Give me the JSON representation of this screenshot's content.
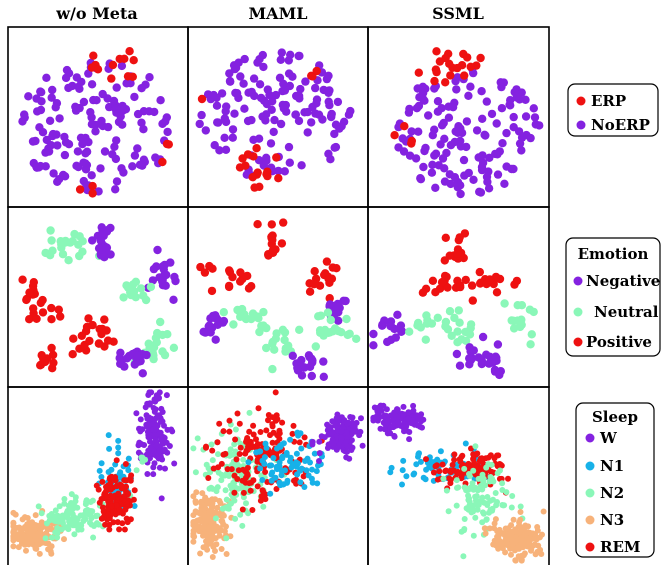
{
  "chart_data": {
    "type": "scatter",
    "title": "",
    "columns": [
      "w/o Meta",
      "MAML",
      "SSML"
    ],
    "colors": {
      "ERP": "#ee1111",
      "NoERP": "#8422e0",
      "Negative": "#8422e0",
      "Neutral": "#8af7b8",
      "Positive": "#ee1111",
      "W": "#8422e0",
      "N1": "#17b1e8",
      "N2": "#8af7b8",
      "N3": "#f7b27a",
      "REM": "#ee1111"
    },
    "rows": [
      {
        "task": "ERP",
        "legend_title": "",
        "legend_items": [
          "ERP",
          "NoERP"
        ],
        "grid": false,
        "panels": [
          {
            "column": "w/o Meta",
            "clusters": [
              {
                "label": "NoERP",
                "cx": 0.5,
                "cy": 0.55,
                "sx": 0.44,
                "sy": 0.38,
                "n": 150,
                "shape": "uniform"
              },
              {
                "label": "ERP",
                "cx": 0.62,
                "cy": 0.2,
                "sx": 0.18,
                "sy": 0.09,
                "n": 12,
                "shape": "uniform"
              },
              {
                "label": "ERP",
                "cx": 0.5,
                "cy": 0.88,
                "sx": 0.15,
                "sy": 0.05,
                "n": 3,
                "shape": "uniform"
              },
              {
                "label": "ERP",
                "cx": 0.85,
                "cy": 0.68,
                "sx": 0.05,
                "sy": 0.1,
                "n": 3,
                "shape": "uniform"
              }
            ]
          },
          {
            "column": "MAML",
            "clusters": [
              {
                "label": "NoERP",
                "cx": 0.5,
                "cy": 0.5,
                "sx": 0.44,
                "sy": 0.36,
                "n": 145,
                "shape": "uniform"
              },
              {
                "label": "ERP",
                "cx": 0.4,
                "cy": 0.78,
                "sx": 0.13,
                "sy": 0.12,
                "n": 16,
                "shape": "uniform"
              },
              {
                "label": "ERP",
                "cx": 0.72,
                "cy": 0.25,
                "sx": 0.06,
                "sy": 0.05,
                "n": 3,
                "shape": "uniform"
              },
              {
                "label": "ERP",
                "cx": 0.1,
                "cy": 0.38,
                "sx": 0.03,
                "sy": 0.03,
                "n": 1,
                "shape": "uniform"
              }
            ]
          },
          {
            "column": "SSML",
            "clusters": [
              {
                "label": "NoERP",
                "cx": 0.55,
                "cy": 0.58,
                "sx": 0.4,
                "sy": 0.35,
                "n": 140,
                "shape": "uniform"
              },
              {
                "label": "ERP",
                "cx": 0.45,
                "cy": 0.2,
                "sx": 0.2,
                "sy": 0.12,
                "n": 20,
                "shape": "uniform"
              },
              {
                "label": "ERP",
                "cx": 0.2,
                "cy": 0.6,
                "sx": 0.06,
                "sy": 0.12,
                "n": 4,
                "shape": "uniform"
              }
            ]
          }
        ]
      },
      {
        "task": "Emotion",
        "legend_title": "Emotion",
        "legend_items": [
          "Negative",
          "Neutral",
          "Positive"
        ],
        "grid": false,
        "panels": [
          {
            "column": "w/o Meta",
            "clusters": [
              {
                "label": "Neutral",
                "cx": 0.32,
                "cy": 0.2,
                "sx": 0.08,
                "sy": 0.04,
                "n": 22,
                "shape": "normal"
              },
              {
                "label": "Negative",
                "cx": 0.53,
                "cy": 0.22,
                "sx": 0.04,
                "sy": 0.05,
                "n": 18,
                "shape": "normal"
              },
              {
                "label": "Negative",
                "cx": 0.86,
                "cy": 0.39,
                "sx": 0.035,
                "sy": 0.06,
                "n": 20,
                "shape": "normal"
              },
              {
                "label": "Neutral",
                "cx": 0.72,
                "cy": 0.47,
                "sx": 0.05,
                "sy": 0.04,
                "n": 15,
                "shape": "normal"
              },
              {
                "label": "Positive",
                "cx": 0.14,
                "cy": 0.53,
                "sx": 0.03,
                "sy": 0.06,
                "n": 18,
                "shape": "normal"
              },
              {
                "label": "Positive",
                "cx": 0.27,
                "cy": 0.61,
                "sx": 0.02,
                "sy": 0.03,
                "n": 4,
                "shape": "normal"
              },
              {
                "label": "Positive",
                "cx": 0.47,
                "cy": 0.7,
                "sx": 0.06,
                "sy": 0.05,
                "n": 22,
                "shape": "normal"
              },
              {
                "label": "Positive",
                "cx": 0.21,
                "cy": 0.84,
                "sx": 0.03,
                "sy": 0.03,
                "n": 10,
                "shape": "normal"
              },
              {
                "label": "Neutral",
                "cx": 0.82,
                "cy": 0.76,
                "sx": 0.04,
                "sy": 0.07,
                "n": 20,
                "shape": "normal"
              },
              {
                "label": "Negative",
                "cx": 0.68,
                "cy": 0.84,
                "sx": 0.05,
                "sy": 0.03,
                "n": 18,
                "shape": "normal"
              }
            ]
          },
          {
            "column": "MAML",
            "clusters": [
              {
                "label": "Positive",
                "cx": 0.48,
                "cy": 0.2,
                "sx": 0.04,
                "sy": 0.05,
                "n": 14,
                "shape": "normal"
              },
              {
                "label": "Positive",
                "cx": 0.22,
                "cy": 0.38,
                "sx": 0.06,
                "sy": 0.04,
                "n": 16,
                "shape": "normal"
              },
              {
                "label": "Positive",
                "cx": 0.74,
                "cy": 0.42,
                "sx": 0.04,
                "sy": 0.05,
                "n": 16,
                "shape": "normal"
              },
              {
                "label": "Negative",
                "cx": 0.82,
                "cy": 0.58,
                "sx": 0.03,
                "sy": 0.06,
                "n": 16,
                "shape": "normal"
              },
              {
                "label": "Neutral",
                "cx": 0.3,
                "cy": 0.6,
                "sx": 0.06,
                "sy": 0.03,
                "n": 16,
                "shape": "normal"
              },
              {
                "label": "Negative",
                "cx": 0.13,
                "cy": 0.66,
                "sx": 0.05,
                "sy": 0.04,
                "n": 16,
                "shape": "normal"
              },
              {
                "label": "Neutral",
                "cx": 0.81,
                "cy": 0.69,
                "sx": 0.07,
                "sy": 0.05,
                "n": 20,
                "shape": "normal"
              },
              {
                "label": "Neutral",
                "cx": 0.49,
                "cy": 0.75,
                "sx": 0.05,
                "sy": 0.05,
                "n": 18,
                "shape": "normal"
              },
              {
                "label": "Negative",
                "cx": 0.65,
                "cy": 0.87,
                "sx": 0.05,
                "sy": 0.035,
                "n": 18,
                "shape": "normal"
              }
            ]
          },
          {
            "column": "SSML",
            "clusters": [
              {
                "label": "Positive",
                "cx": 0.5,
                "cy": 0.23,
                "sx": 0.04,
                "sy": 0.04,
                "n": 14,
                "shape": "normal"
              },
              {
                "label": "Positive",
                "cx": 0.42,
                "cy": 0.43,
                "sx": 0.06,
                "sy": 0.03,
                "n": 16,
                "shape": "normal"
              },
              {
                "label": "Positive",
                "cx": 0.7,
                "cy": 0.43,
                "sx": 0.08,
                "sy": 0.03,
                "n": 16,
                "shape": "normal"
              },
              {
                "label": "Negative",
                "cx": 0.13,
                "cy": 0.68,
                "sx": 0.05,
                "sy": 0.04,
                "n": 16,
                "shape": "normal"
              },
              {
                "label": "Neutral",
                "cx": 0.37,
                "cy": 0.65,
                "sx": 0.09,
                "sy": 0.03,
                "n": 16,
                "shape": "normal"
              },
              {
                "label": "Neutral",
                "cx": 0.52,
                "cy": 0.7,
                "sx": 0.03,
                "sy": 0.04,
                "n": 10,
                "shape": "normal"
              },
              {
                "label": "Neutral",
                "cx": 0.84,
                "cy": 0.64,
                "sx": 0.05,
                "sy": 0.05,
                "n": 16,
                "shape": "normal"
              },
              {
                "label": "Negative",
                "cx": 0.55,
                "cy": 0.8,
                "sx": 0.05,
                "sy": 0.04,
                "n": 12,
                "shape": "normal"
              },
              {
                "label": "Negative",
                "cx": 0.68,
                "cy": 0.86,
                "sx": 0.04,
                "sy": 0.04,
                "n": 16,
                "shape": "normal"
              }
            ]
          }
        ]
      },
      {
        "task": "Sleep",
        "legend_title": "Sleep",
        "legend_items": [
          "W",
          "N1",
          "N2",
          "N3",
          "REM"
        ],
        "grid": false,
        "panels": [
          {
            "column": "w/o Meta",
            "clusters": [
              {
                "label": "N3",
                "cx": 0.14,
                "cy": 0.82,
                "sx": 0.07,
                "sy": 0.05,
                "n": 170,
                "shape": "normal"
              },
              {
                "label": "N2",
                "cx": 0.37,
                "cy": 0.73,
                "sx": 0.09,
                "sy": 0.05,
                "n": 110,
                "shape": "normal"
              },
              {
                "label": "N1",
                "cx": 0.6,
                "cy": 0.55,
                "sx": 0.05,
                "sy": 0.09,
                "n": 60,
                "shape": "normal"
              },
              {
                "label": "REM",
                "cx": 0.6,
                "cy": 0.65,
                "sx": 0.05,
                "sy": 0.09,
                "n": 120,
                "shape": "normal"
              },
              {
                "label": "W",
                "cx": 0.82,
                "cy": 0.27,
                "sx": 0.04,
                "sy": 0.11,
                "n": 140,
                "shape": "normal"
              },
              {
                "label": "N2",
                "cx": 0.75,
                "cy": 0.42,
                "sx": 0.02,
                "sy": 0.03,
                "n": 5,
                "shape": "normal"
              }
            ]
          },
          {
            "column": "MAML",
            "clusters": [
              {
                "label": "N3",
                "cx": 0.12,
                "cy": 0.75,
                "sx": 0.05,
                "sy": 0.08,
                "n": 170,
                "shape": "normal"
              },
              {
                "label": "N2",
                "cx": 0.27,
                "cy": 0.5,
                "sx": 0.1,
                "sy": 0.12,
                "n": 130,
                "shape": "normal"
              },
              {
                "label": "REM",
                "cx": 0.42,
                "cy": 0.38,
                "sx": 0.13,
                "sy": 0.12,
                "n": 150,
                "shape": "normal"
              },
              {
                "label": "N1",
                "cx": 0.57,
                "cy": 0.42,
                "sx": 0.1,
                "sy": 0.08,
                "n": 80,
                "shape": "normal"
              },
              {
                "label": "W",
                "cx": 0.85,
                "cy": 0.27,
                "sx": 0.06,
                "sy": 0.05,
                "n": 140,
                "shape": "normal"
              }
            ]
          },
          {
            "column": "SSML",
            "clusters": [
              {
                "label": "W",
                "cx": 0.17,
                "cy": 0.18,
                "sx": 0.07,
                "sy": 0.04,
                "n": 120,
                "shape": "normal"
              },
              {
                "label": "N1",
                "cx": 0.4,
                "cy": 0.45,
                "sx": 0.12,
                "sy": 0.05,
                "n": 60,
                "shape": "normal"
              },
              {
                "label": "REM",
                "cx": 0.58,
                "cy": 0.46,
                "sx": 0.1,
                "sy": 0.05,
                "n": 110,
                "shape": "normal"
              },
              {
                "label": "N2",
                "cx": 0.62,
                "cy": 0.62,
                "sx": 0.08,
                "sy": 0.09,
                "n": 100,
                "shape": "normal"
              },
              {
                "label": "N3",
                "cx": 0.82,
                "cy": 0.85,
                "sx": 0.07,
                "sy": 0.05,
                "n": 160,
                "shape": "normal"
              }
            ]
          }
        ]
      }
    ]
  }
}
